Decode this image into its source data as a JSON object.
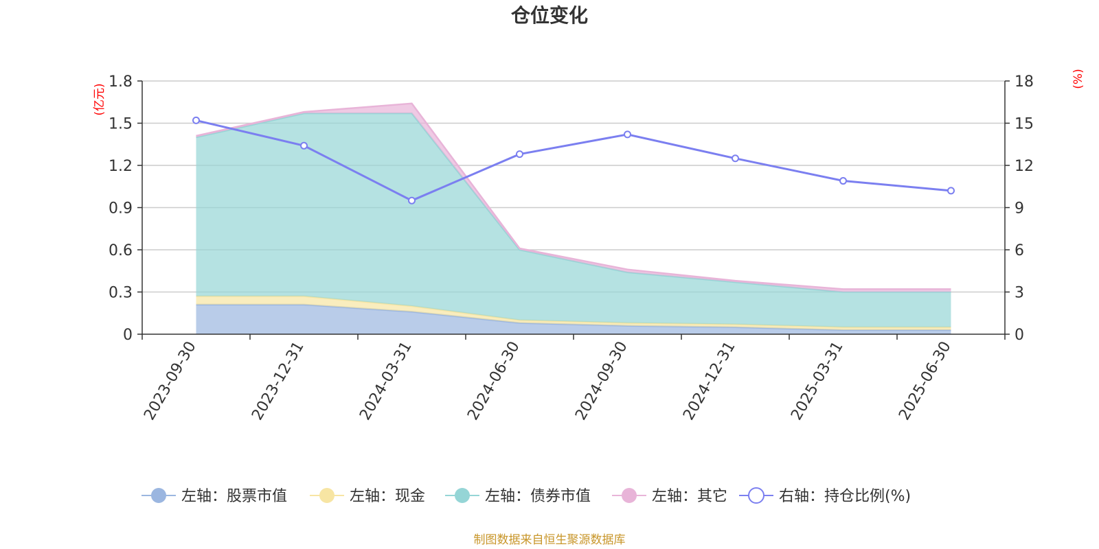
{
  "chart_data": {
    "type": "area",
    "title": "仓位变化",
    "categories": [
      "2023-09-30",
      "2023-12-31",
      "2024-03-31",
      "2024-06-30",
      "2024-09-30",
      "2024-12-31",
      "2025-03-31",
      "2025-06-30"
    ],
    "left_axis": {
      "unit": "(亿元)",
      "ylim": [
        0,
        1.8
      ],
      "ticks": [
        "0",
        "0.3",
        "0.6",
        "0.9",
        "1.2",
        "1.5",
        "1.8"
      ]
    },
    "right_axis": {
      "unit": "(%)",
      "ylim": [
        0,
        18
      ],
      "ticks": [
        "0",
        "3",
        "6",
        "9",
        "12",
        "15",
        "18"
      ]
    },
    "stacked_series": [
      {
        "name": "左轴：股票市值",
        "axis": "left",
        "values": [
          0.21,
          0.21,
          0.16,
          0.08,
          0.06,
          0.05,
          0.03,
          0.03
        ],
        "color": "#9bb6e0"
      },
      {
        "name": "左轴：现金",
        "axis": "left",
        "values": [
          0.06,
          0.06,
          0.04,
          0.02,
          0.02,
          0.02,
          0.02,
          0.02
        ],
        "color": "#f7e5a3"
      },
      {
        "name": "左轴：债券市值",
        "axis": "left",
        "values": [
          1.13,
          1.3,
          1.37,
          0.5,
          0.36,
          0.3,
          0.25,
          0.25
        ],
        "color": "#95d5d6"
      },
      {
        "name": "左轴：其它",
        "axis": "left",
        "values": [
          0.01,
          0.01,
          0.07,
          0.01,
          0.02,
          0.01,
          0.02,
          0.02
        ],
        "color": "#e8b4d8"
      }
    ],
    "line_series": {
      "name": "右轴：持仓比例(%)",
      "axis": "right",
      "values": [
        15.2,
        13.4,
        9.5,
        12.8,
        14.2,
        12.5,
        10.9,
        10.2
      ],
      "color": "#7b7ff0"
    },
    "grid": true,
    "legend_position": "bottom"
  },
  "source_note": "制图数据来自恒生聚源数据库"
}
